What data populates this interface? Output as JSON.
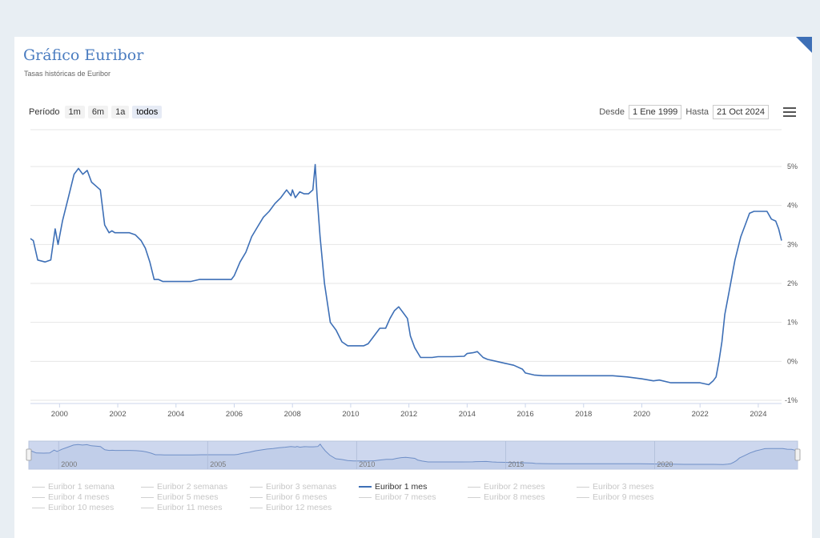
{
  "header": {
    "title": "Gráfico Euribor",
    "subtitle": "Tasas históricas de Euribor"
  },
  "range_selector": {
    "label": "Período",
    "buttons": [
      "1m",
      "6m",
      "1a",
      "todos"
    ],
    "active": "todos"
  },
  "date_inputs": {
    "from_label": "Desde",
    "from_value": "1 Ene 1999",
    "to_label": "Hasta",
    "to_value": "21 Oct 2024"
  },
  "navigator": {
    "labels": [
      "2000",
      "2005",
      "2010",
      "2015",
      "2020"
    ]
  },
  "legend": [
    {
      "label": "Euribor 1 semana",
      "active": false
    },
    {
      "label": "Euribor 2 semanas",
      "active": false
    },
    {
      "label": "Euribor 3 semanas",
      "active": false
    },
    {
      "label": "Euribor 1 mes",
      "active": true
    },
    {
      "label": "Euribor 2 meses",
      "active": false
    },
    {
      "label": "Euribor 3 meses",
      "active": false
    },
    {
      "label": "Euribor 4 meses",
      "active": false
    },
    {
      "label": "Euribor 5 meses",
      "active": false
    },
    {
      "label": "Euribor 6 meses",
      "active": false
    },
    {
      "label": "Euribor 7 meses",
      "active": false
    },
    {
      "label": "Euribor 8 meses",
      "active": false
    },
    {
      "label": "Euribor 9 meses",
      "active": false
    },
    {
      "label": "Euribor 10 meses",
      "active": false
    },
    {
      "label": "Euribor 11 meses",
      "active": false
    },
    {
      "label": "Euribor 12 meses",
      "active": false
    }
  ],
  "colors": {
    "series": "#3d6fb6",
    "title": "#4a7cc0",
    "navigator_fill": "#cdd7ee"
  },
  "chart_data": {
    "type": "line",
    "x_unit": "year",
    "xlim": [
      1999.0,
      2024.8
    ],
    "ylim": [
      -1,
      5
    ],
    "x_ticks": [
      "2000",
      "2002",
      "2004",
      "2006",
      "2008",
      "2010",
      "2012",
      "2014",
      "2016",
      "2018",
      "2020",
      "2022",
      "2024"
    ],
    "y_ticks": [
      "-1%",
      "0%",
      "1%",
      "2%",
      "3%",
      "4%",
      "5%"
    ],
    "grid": true,
    "legend_position": "bottom",
    "series": [
      {
        "name": "Euribor 1 mes",
        "x": [
          1999.0,
          1999.1,
          1999.25,
          1999.5,
          1999.7,
          1999.85,
          1999.95,
          2000.1,
          2000.3,
          2000.5,
          2000.65,
          2000.8,
          2000.95,
          2001.1,
          2001.25,
          2001.4,
          2001.55,
          2001.7,
          2001.8,
          2001.9,
          2002.1,
          2002.4,
          2002.6,
          2002.8,
          2002.95,
          2003.1,
          2003.25,
          2003.4,
          2003.55,
          2003.8,
          2004.0,
          2004.3,
          2004.5,
          2004.8,
          2005.0,
          2005.3,
          2005.6,
          2005.9,
          2006.0,
          2006.2,
          2006.4,
          2006.6,
          2006.8,
          2007.0,
          2007.2,
          2007.4,
          2007.6,
          2007.8,
          2007.95,
          2008.0,
          2008.1,
          2008.25,
          2008.4,
          2008.55,
          2008.7,
          2008.78,
          2008.85,
          2008.95,
          2009.1,
          2009.3,
          2009.5,
          2009.7,
          2009.9,
          2010.2,
          2010.45,
          2010.6,
          2010.75,
          2011.0,
          2011.2,
          2011.35,
          2011.5,
          2011.65,
          2011.8,
          2011.95,
          2012.05,
          2012.2,
          2012.4,
          2012.6,
          2012.8,
          2013.0,
          2013.5,
          2013.9,
          2014.0,
          2014.2,
          2014.35,
          2014.55,
          2014.7,
          2015.0,
          2015.3,
          2015.6,
          2015.9,
          2016.0,
          2016.3,
          2016.6,
          2017.0,
          2018.0,
          2019.0,
          2019.5,
          2020.0,
          2020.4,
          2020.6,
          2021.0,
          2021.5,
          2022.0,
          2022.3,
          2022.45,
          2022.55,
          2022.65,
          2022.75,
          2022.85,
          2023.0,
          2023.2,
          2023.4,
          2023.55,
          2023.7,
          2023.85,
          2024.0,
          2024.15,
          2024.3,
          2024.45,
          2024.6,
          2024.7,
          2024.8
        ],
        "values": [
          3.15,
          3.1,
          2.6,
          2.55,
          2.6,
          3.4,
          3.0,
          3.6,
          4.2,
          4.8,
          4.95,
          4.8,
          4.9,
          4.6,
          4.5,
          4.4,
          3.5,
          3.3,
          3.35,
          3.3,
          3.3,
          3.3,
          3.25,
          3.1,
          2.9,
          2.55,
          2.1,
          2.1,
          2.05,
          2.05,
          2.05,
          2.05,
          2.05,
          2.1,
          2.1,
          2.1,
          2.1,
          2.1,
          2.2,
          2.55,
          2.8,
          3.2,
          3.45,
          3.7,
          3.85,
          4.05,
          4.2,
          4.4,
          4.25,
          4.4,
          4.2,
          4.35,
          4.3,
          4.3,
          4.4,
          5.05,
          4.2,
          3.2,
          2.0,
          1.0,
          0.8,
          0.5,
          0.4,
          0.4,
          0.4,
          0.45,
          0.6,
          0.85,
          0.85,
          1.1,
          1.3,
          1.4,
          1.25,
          1.1,
          0.65,
          0.35,
          0.1,
          0.1,
          0.1,
          0.12,
          0.12,
          0.13,
          0.2,
          0.22,
          0.25,
          0.1,
          0.05,
          0.0,
          -0.05,
          -0.1,
          -0.2,
          -0.3,
          -0.35,
          -0.37,
          -0.37,
          -0.37,
          -0.37,
          -0.4,
          -0.45,
          -0.5,
          -0.48,
          -0.55,
          -0.55,
          -0.55,
          -0.6,
          -0.5,
          -0.4,
          0.0,
          0.5,
          1.2,
          1.8,
          2.6,
          3.2,
          3.5,
          3.8,
          3.85,
          3.85,
          3.85,
          3.85,
          3.65,
          3.6,
          3.4,
          3.1
        ]
      }
    ]
  }
}
